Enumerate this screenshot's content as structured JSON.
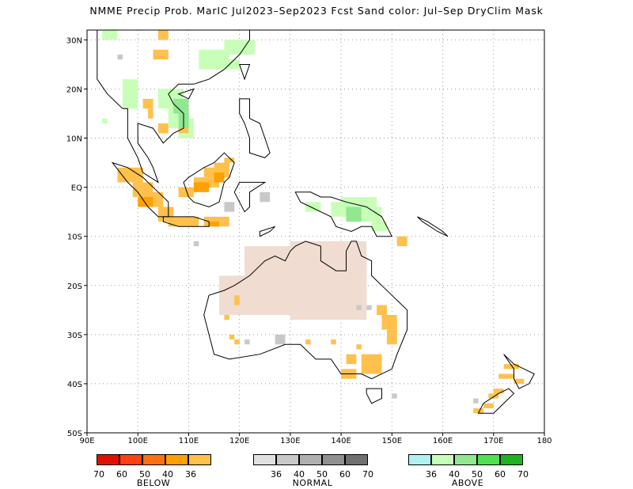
{
  "title": "NMME Precip Prob. MarIC  Jul2023–Sep2023 Fcst  Sand color: Jul–Sep DryClim Mask",
  "map": {
    "lon_range": [
      90,
      180
    ],
    "lat_range": [
      -50,
      32
    ],
    "lon_ticks": [
      "90E",
      "100E",
      "110E",
      "120E",
      "130E",
      "140E",
      "150E",
      "160E",
      "170E",
      "180"
    ],
    "lat_ticks": [
      "30N",
      "20N",
      "10N",
      "EQ",
      "10S",
      "20S",
      "30S",
      "40S",
      "50S"
    ],
    "gridlines": true
  },
  "colors": {
    "below_36": "#ffc04c",
    "below_40": "#ffa000",
    "below_50": "#ff7010",
    "below_60": "#ff4010",
    "below_70": "#e01000",
    "normal_36": "#e0e0e0",
    "normal_40": "#c8c8c8",
    "normal_50": "#b0b0b0",
    "normal_60": "#909090",
    "normal_70": "#707070",
    "above_36": "#b0f0f0",
    "above_40": "#c8ffb8",
    "above_50": "#90e890",
    "above_60": "#50e050",
    "above_70": "#20b020",
    "dry_mask": "#f0dcd0"
  },
  "legend": {
    "below": {
      "label": "BELOW",
      "ticks": [
        "70",
        "60",
        "50",
        "40",
        "36"
      ]
    },
    "normal": {
      "label": "NORMAL",
      "ticks": [
        "36",
        "40",
        "50",
        "60",
        "70"
      ]
    },
    "above": {
      "label": "ABOVE",
      "ticks": [
        "36",
        "40",
        "50",
        "60",
        "70"
      ]
    }
  }
}
